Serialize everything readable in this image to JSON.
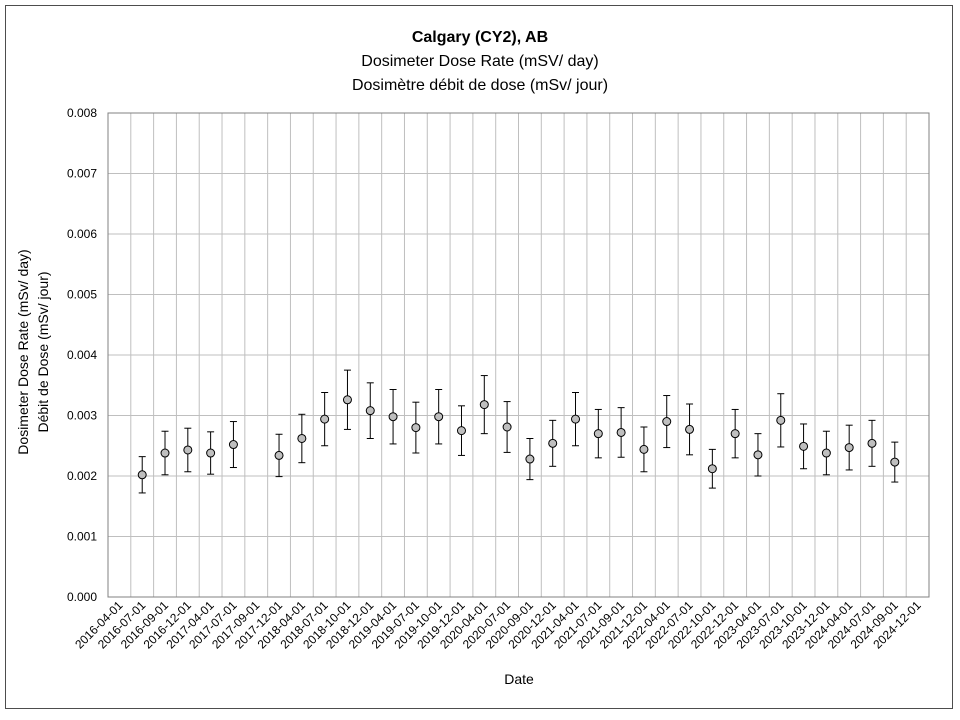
{
  "chart_data": {
    "type": "scatter",
    "title": "Calgary (CY2), AB",
    "subtitle_en": "Dosimeter Dose Rate (mSV/ day)",
    "subtitle_fr": "Dosimètre débit de dose (mSv/ jour)",
    "xlabel": "Date",
    "ylabel_en": "Dosimeter Dose Rate (mSv/ day)",
    "ylabel_fr": "Débit de Dose (mSv/ jour)",
    "ylim": [
      0,
      0.008
    ],
    "yticks": [
      "0.000",
      "0.001",
      "0.002",
      "0.003",
      "0.004",
      "0.005",
      "0.006",
      "0.007",
      "0.008"
    ],
    "x_tick_labels": [
      "2016-04-01",
      "2016-07-01",
      "2016-09-01",
      "2016-12-01",
      "2017-04-01",
      "2017-07-01",
      "2017-09-01",
      "2017-12-01",
      "2018-04-01",
      "2018-07-01",
      "2018-10-01",
      "2018-12-01",
      "2019-04-01",
      "2019-07-01",
      "2019-10-01",
      "2019-12-01",
      "2020-04-01",
      "2020-07-01",
      "2020-09-01",
      "2020-12-01",
      "2021-04-01",
      "2021-07-01",
      "2021-09-01",
      "2021-12-01",
      "2022-04-01",
      "2022-07-01",
      "2022-10-01",
      "2022-12-01",
      "2023-04-01",
      "2023-07-01",
      "2023-10-01",
      "2023-12-01",
      "2024-04-01",
      "2024-07-01",
      "2024-09-01",
      "2024-12-01"
    ],
    "grid": "vertical and horizontal",
    "marker_color": "#bfbfbf",
    "series": [
      {
        "points": [
          {
            "x": "2016-07-01",
            "y": 0.00202,
            "err": 0.0003
          },
          {
            "x": "2016-09-01",
            "y": 0.00238,
            "err": 0.00036
          },
          {
            "x": "2016-12-01",
            "y": 0.00243,
            "err": 0.00036
          },
          {
            "x": "2017-04-01",
            "y": 0.00238,
            "err": 0.00035
          },
          {
            "x": "2017-07-01",
            "y": 0.00252,
            "err": 0.00038
          },
          {
            "x": "2017-12-01",
            "y": 0.00234,
            "err": 0.00035
          },
          {
            "x": "2018-04-01",
            "y": 0.00262,
            "err": 0.0004
          },
          {
            "x": "2018-07-01",
            "y": 0.00294,
            "err": 0.00044
          },
          {
            "x": "2018-10-01",
            "y": 0.00326,
            "err": 0.00049
          },
          {
            "x": "2018-12-01",
            "y": 0.00308,
            "err": 0.00046
          },
          {
            "x": "2019-04-01",
            "y": 0.00298,
            "err": 0.00045
          },
          {
            "x": "2019-07-01",
            "y": 0.0028,
            "err": 0.00042
          },
          {
            "x": "2019-10-01",
            "y": 0.00298,
            "err": 0.00045
          },
          {
            "x": "2019-12-01",
            "y": 0.00275,
            "err": 0.00041
          },
          {
            "x": "2020-04-01",
            "y": 0.00318,
            "err": 0.00048
          },
          {
            "x": "2020-07-01",
            "y": 0.00281,
            "err": 0.00042
          },
          {
            "x": "2020-09-01",
            "y": 0.00228,
            "err": 0.00034
          },
          {
            "x": "2020-12-01",
            "y": 0.00254,
            "err": 0.00038
          },
          {
            "x": "2021-04-01",
            "y": 0.00294,
            "err": 0.00044
          },
          {
            "x": "2021-07-01",
            "y": 0.0027,
            "err": 0.0004
          },
          {
            "x": "2021-09-01",
            "y": 0.00272,
            "err": 0.00041
          },
          {
            "x": "2021-12-01",
            "y": 0.00244,
            "err": 0.00037
          },
          {
            "x": "2022-04-01",
            "y": 0.0029,
            "err": 0.00043
          },
          {
            "x": "2022-07-01",
            "y": 0.00277,
            "err": 0.00042
          },
          {
            "x": "2022-10-01",
            "y": 0.00212,
            "err": 0.00032
          },
          {
            "x": "2022-12-01",
            "y": 0.0027,
            "err": 0.0004
          },
          {
            "x": "2023-04-01",
            "y": 0.00235,
            "err": 0.00035
          },
          {
            "x": "2023-07-01",
            "y": 0.00292,
            "err": 0.00044
          },
          {
            "x": "2023-10-01",
            "y": 0.00249,
            "err": 0.00037
          },
          {
            "x": "2023-12-01",
            "y": 0.00238,
            "err": 0.00036
          },
          {
            "x": "2024-04-01",
            "y": 0.00247,
            "err": 0.00037
          },
          {
            "x": "2024-07-01",
            "y": 0.00254,
            "err": 0.00038
          },
          {
            "x": "2024-09-01",
            "y": 0.00223,
            "err": 0.00033
          }
        ]
      }
    ]
  }
}
